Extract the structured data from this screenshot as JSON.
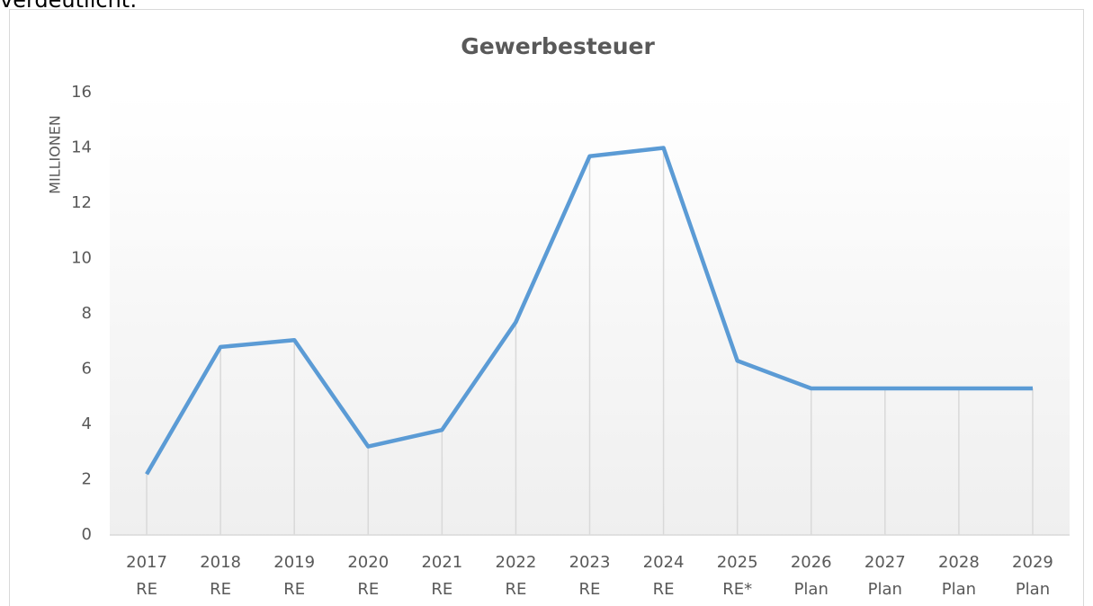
{
  "page_text": "verdeutlicht:",
  "chart_data": {
    "type": "line",
    "title": "Gewerbesteuer",
    "y_label": "MILLIONEN",
    "categories": [
      [
        "2017",
        "RE"
      ],
      [
        "2018",
        "RE"
      ],
      [
        "2019",
        "RE"
      ],
      [
        "2020",
        "RE"
      ],
      [
        "2021",
        "RE"
      ],
      [
        "2022",
        "RE"
      ],
      [
        "2023",
        "RE"
      ],
      [
        "2024",
        "RE"
      ],
      [
        "2025",
        "RE*"
      ],
      [
        "2026",
        "Plan"
      ],
      [
        "2027",
        "Plan"
      ],
      [
        "2028",
        "Plan"
      ],
      [
        "2029",
        "Plan"
      ]
    ],
    "series": [
      {
        "name": "Gewerbesteuer",
        "color": "#5b9bd5",
        "values": [
          2.2,
          6.8,
          7.05,
          3.2,
          3.8,
          7.7,
          13.7,
          14.0,
          6.3,
          5.3,
          5.3,
          5.3,
          5.3
        ]
      }
    ],
    "ylim": [
      0,
      16
    ],
    "yticks": [
      0,
      2,
      4,
      6,
      8,
      10,
      12,
      14,
      16
    ],
    "grid": false,
    "drop_lines": true
  }
}
